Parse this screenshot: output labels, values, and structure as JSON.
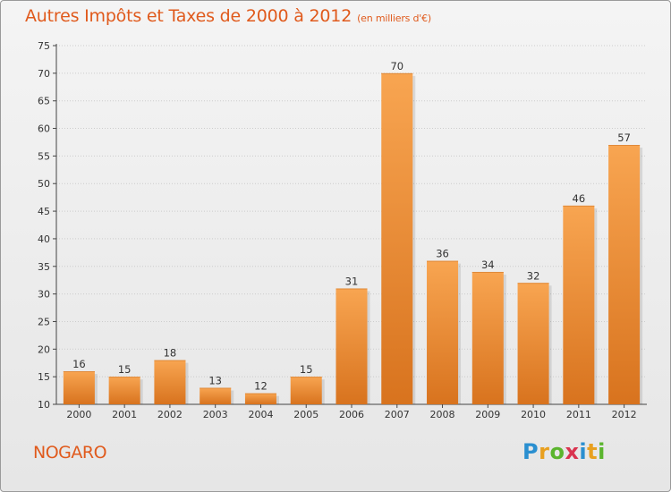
{
  "title": "Autres Impôts et Taxes de 2000 à 2012",
  "subtitle": "(en milliers d'€)",
  "commune": "NOGARO",
  "logo": {
    "letters": [
      "P",
      "r",
      "o",
      "x",
      "i",
      "t",
      "i"
    ],
    "colors": [
      "#2a8fd0",
      "#e8a020",
      "#5bb52e",
      "#d9344f",
      "#2a8fd0",
      "#e8a020",
      "#5bb52e"
    ]
  },
  "colors": {
    "accent": "#e05a1c",
    "bar_top": "#f8a551",
    "bar_bottom": "#d8731e",
    "grid": "#cccccc"
  },
  "chart_data": {
    "type": "bar",
    "title": "Autres Impôts et Taxes de 2000 à 2012",
    "subtitle": "(en milliers d'€)",
    "categories": [
      "2000",
      "2001",
      "2002",
      "2003",
      "2004",
      "2005",
      "2006",
      "2007",
      "2008",
      "2009",
      "2010",
      "2011",
      "2012"
    ],
    "values": [
      16,
      15,
      18,
      13,
      12,
      15,
      31,
      70,
      36,
      34,
      32,
      46,
      57
    ],
    "data_labels": [
      "16",
      "15",
      "18",
      "13",
      "12",
      "15",
      "31",
      "70",
      "36",
      "34",
      "32",
      "46",
      "57"
    ],
    "yticks": [
      "10",
      "15",
      "20",
      "25",
      "30",
      "35",
      "40",
      "45",
      "50",
      "55",
      "60",
      "65",
      "70",
      "75"
    ],
    "ylim": [
      10,
      75
    ],
    "grid": true,
    "xlabel": "",
    "ylabel": ""
  }
}
